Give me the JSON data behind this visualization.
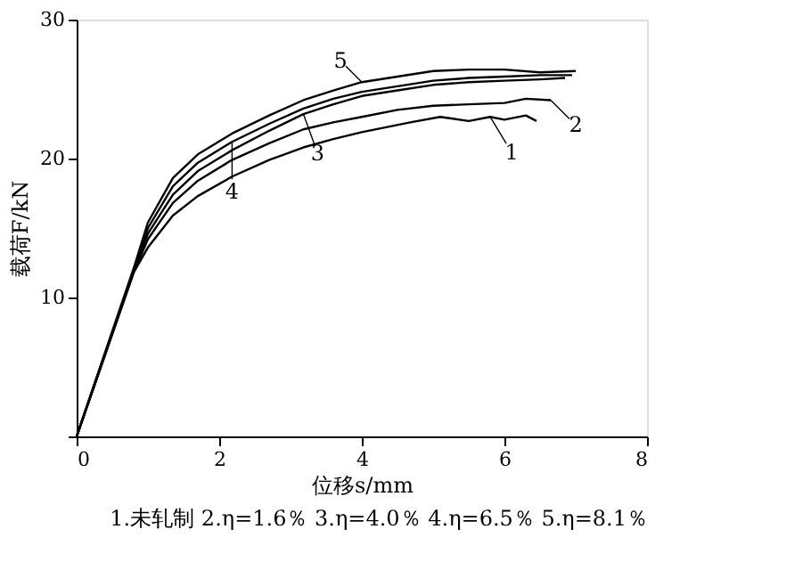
{
  "chart_data": {
    "type": "line",
    "xlabel": "位移s/mm",
    "ylabel": "载荷F/kN",
    "xlim": [
      0,
      8
    ],
    "xticks": [
      0,
      2,
      4,
      6,
      8
    ],
    "ylim": [
      0,
      30
    ],
    "yticks": [
      {
        "value": 0,
        "label": null
      },
      10,
      20,
      30
    ],
    "grid": false,
    "legend": "right",
    "marker": "none",
    "line_style": "solid",
    "series": [
      {
        "name": "1",
        "color": "#000000",
        "x": [
          0,
          0.8,
          1.0,
          1.35,
          1.7,
          2.18,
          2.7,
          3.18,
          3.6,
          4.0,
          4.68,
          5.1,
          5.5,
          5.8,
          6.0,
          6.3,
          6.45
        ],
        "values": [
          0,
          11.8,
          13.6,
          15.9,
          17.3,
          18.7,
          19.9,
          20.8,
          21.4,
          21.9,
          22.6,
          23.0,
          22.7,
          23.0,
          22.8,
          23.1,
          22.7
        ]
      },
      {
        "name": "2",
        "color": "#000000",
        "x": [
          0,
          0.8,
          1.0,
          1.35,
          1.7,
          2.18,
          2.7,
          3.18,
          3.6,
          4.0,
          4.5,
          5.0,
          5.5,
          6.0,
          6.3,
          6.65
        ],
        "values": [
          0,
          11.8,
          14.2,
          16.8,
          18.4,
          19.9,
          21.1,
          22.1,
          22.6,
          23.0,
          23.5,
          23.8,
          23.9,
          24.0,
          24.3,
          24.2
        ]
      },
      {
        "name": "3",
        "color": "#000000",
        "x": [
          0,
          0.8,
          1.0,
          1.35,
          1.7,
          2.18,
          2.7,
          3.18,
          3.6,
          4.0,
          4.5,
          5.0,
          5.5,
          6.0,
          6.5,
          6.85
        ],
        "values": [
          0,
          11.9,
          14.6,
          17.4,
          19.1,
          20.6,
          22.0,
          23.2,
          23.9,
          24.5,
          24.9,
          25.3,
          25.5,
          25.6,
          25.7,
          25.8
        ]
      },
      {
        "name": "4",
        "color": "#000000",
        "x": [
          0,
          0.8,
          1.0,
          1.35,
          1.7,
          2.18,
          2.7,
          3.18,
          3.6,
          4.0,
          4.5,
          5.0,
          5.5,
          6.0,
          6.5,
          6.95
        ],
        "values": [
          0,
          12.0,
          15.0,
          18.0,
          19.7,
          21.2,
          22.5,
          23.6,
          24.3,
          24.8,
          25.2,
          25.6,
          25.8,
          25.9,
          26.0,
          26.0
        ]
      },
      {
        "name": "5",
        "color": "#000000",
        "x": [
          0,
          0.8,
          1.0,
          1.35,
          1.7,
          2.18,
          2.7,
          3.18,
          3.6,
          4.0,
          4.5,
          5.0,
          5.5,
          6.0,
          6.5,
          7.0
        ],
        "values": [
          0,
          12.1,
          15.4,
          18.6,
          20.3,
          21.8,
          23.1,
          24.2,
          24.9,
          25.5,
          25.9,
          26.3,
          26.4,
          26.4,
          26.2,
          26.3
        ]
      }
    ],
    "annotations": [
      "1.未轧制    2.η=1.6％  3.η=4.0％  4.η=6.5％    5.η=8.1％"
    ]
  }
}
